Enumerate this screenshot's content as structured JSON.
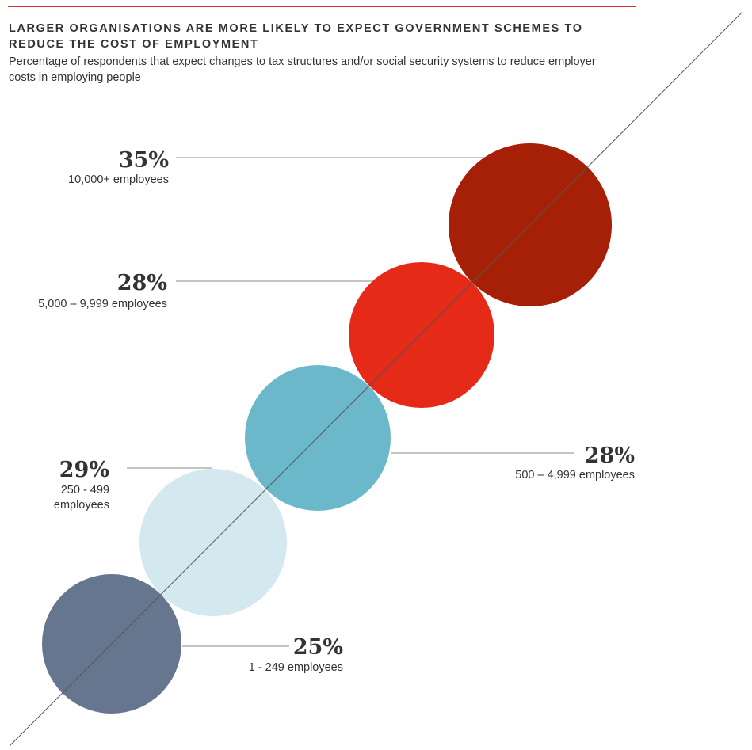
{
  "header": {
    "title": "LARGER ORGANISATIONS ARE MORE LIKELY TO EXPECT GOVERNMENT SCHEMES TO REDUCE THE COST OF EMPLOYMENT",
    "subtitle": "Percentage of respondents that expect changes to tax structures and/or social security systems to reduce employer costs in employing people",
    "accent_color": "#d1322b"
  },
  "chart_data": {
    "type": "bubble",
    "title": "LARGER ORGANISATIONS ARE MORE LIKELY TO EXPECT GOVERNMENT SCHEMES TO REDUCE THE COST OF EMPLOYMENT",
    "subtitle": "Percentage of respondents that expect changes to tax structures and/or social security systems to reduce employer costs in employing people",
    "unit": "%",
    "categories": [
      "1 - 249 employees",
      "250 - 499 employees",
      "500 – 4,999 employees",
      "5,000 – 9,999 employees",
      "10,000+ employees"
    ],
    "series": [
      {
        "values": [
          25,
          29,
          28,
          28,
          35
        ],
        "labels": [
          "25%",
          "29%",
          "28%",
          "28%",
          "35%"
        ],
        "category_label_lines": [
          [
            "1 - 249 employees"
          ],
          [
            "250 - 499",
            "employees"
          ],
          [
            "500 – 4,999 employees"
          ],
          [
            "5,000 – 9,999 employees"
          ],
          [
            "10,000+ employees"
          ]
        ],
        "colors": [
          "#66768f",
          "#d3e8ef",
          "#6bb8cb",
          "#e52a17",
          "#a62007"
        ]
      }
    ]
  }
}
